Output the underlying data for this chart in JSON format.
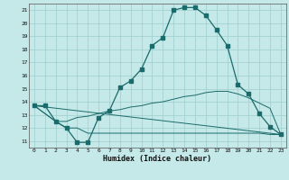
{
  "xlabel": "Humidex (Indice chaleur)",
  "xlim": [
    -0.5,
    23.5
  ],
  "ylim": [
    10.5,
    21.5
  ],
  "xticks": [
    0,
    1,
    2,
    3,
    4,
    5,
    6,
    7,
    8,
    9,
    10,
    11,
    12,
    13,
    14,
    15,
    16,
    17,
    18,
    19,
    20,
    21,
    22,
    23
  ],
  "yticks": [
    11,
    12,
    13,
    14,
    15,
    16,
    17,
    18,
    19,
    20,
    21
  ],
  "bg_color": "#c5e8e8",
  "grid_color": "#9ecece",
  "line_color": "#1a6b6b",
  "line1_x": [
    0,
    1,
    2,
    3,
    4,
    5,
    6,
    7,
    8,
    9,
    10,
    11,
    12,
    13,
    14,
    15,
    16,
    17,
    18,
    19,
    20,
    21,
    22,
    23
  ],
  "line1_y": [
    13.7,
    13.7,
    12.5,
    12.0,
    10.9,
    10.9,
    12.8,
    13.3,
    15.1,
    15.6,
    16.5,
    18.3,
    18.9,
    21.0,
    21.2,
    21.2,
    20.6,
    19.5,
    18.3,
    15.3,
    14.6,
    13.1,
    12.1,
    11.5
  ],
  "line2_x": [
    0,
    2,
    3,
    4,
    5,
    6,
    7,
    8,
    9,
    10,
    11,
    12,
    13,
    14,
    15,
    16,
    17,
    18,
    19,
    20,
    21,
    22,
    23
  ],
  "line2_y": [
    13.7,
    12.5,
    12.5,
    12.8,
    12.9,
    13.1,
    13.3,
    13.4,
    13.6,
    13.7,
    13.9,
    14.0,
    14.2,
    14.4,
    14.5,
    14.7,
    14.8,
    14.8,
    14.6,
    14.3,
    13.9,
    13.5,
    11.5
  ],
  "line3_x": [
    0,
    2,
    3,
    4,
    5,
    6,
    7,
    8,
    9,
    10,
    11,
    12,
    13,
    14,
    15,
    16,
    17,
    18,
    19,
    20,
    21,
    22,
    23
  ],
  "line3_y": [
    13.7,
    12.5,
    12.0,
    12.0,
    11.6,
    11.6,
    11.6,
    11.6,
    11.6,
    11.6,
    11.6,
    11.6,
    11.6,
    11.6,
    11.6,
    11.6,
    11.6,
    11.6,
    11.6,
    11.6,
    11.6,
    11.5,
    11.5
  ],
  "line4_x": [
    0,
    23
  ],
  "line4_y": [
    13.7,
    11.5
  ],
  "marker_size": 2.5
}
